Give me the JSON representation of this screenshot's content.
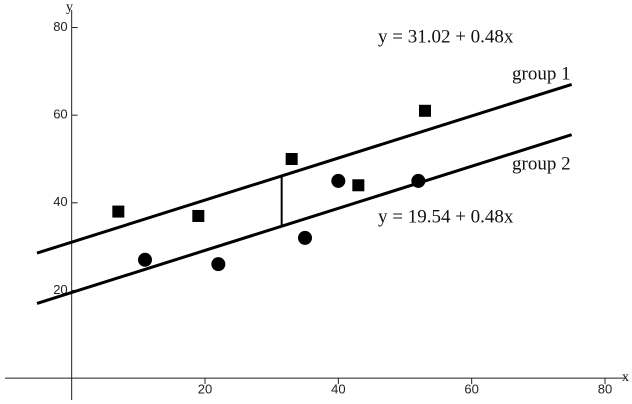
{
  "chart_data": {
    "type": "scatter",
    "x_label": "x",
    "y_label": "y",
    "xlim": [
      -10,
      83
    ],
    "ylim": [
      -5,
      84
    ],
    "xticks": [
      20,
      40,
      60,
      80
    ],
    "yticks": [
      20,
      40,
      60,
      80
    ],
    "series": [
      {
        "name": "group 1",
        "marker": "square",
        "color": "#000000",
        "x": [
          7,
          19,
          33,
          43,
          53
        ],
        "values": [
          38,
          37,
          50,
          44,
          61
        ]
      },
      {
        "name": "group 2",
        "marker": "circle",
        "color": "#000000",
        "x": [
          11,
          22,
          35,
          40,
          52
        ],
        "values": [
          27,
          26,
          32,
          45,
          45
        ]
      }
    ],
    "lines": [
      {
        "equation": "y = 31.02 + 0.48x",
        "x": [
          -5.2,
          75
        ],
        "values": [
          28.52,
          67.02
        ]
      },
      {
        "equation": "y = 19.54 + 0.48x",
        "x": [
          -5.2,
          75
        ],
        "values": [
          17.04,
          55.54
        ]
      }
    ],
    "segment": {
      "x": [
        31.5,
        31.5
      ],
      "values": [
        34.66,
        46.14
      ]
    }
  }
}
